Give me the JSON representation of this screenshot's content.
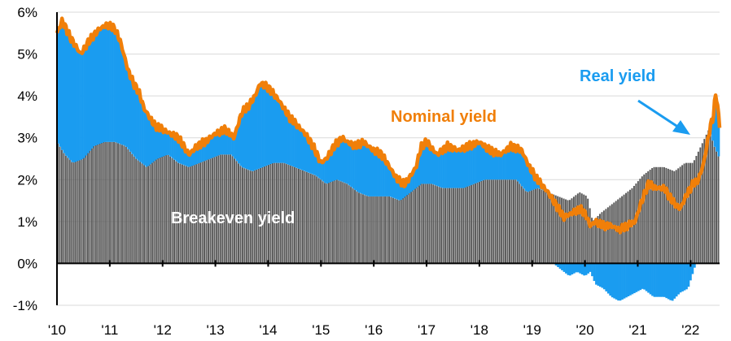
{
  "chart_data": {
    "type": "area",
    "yaxis_ticks": [
      "-1%",
      "0%",
      "1%",
      "2%",
      "3%",
      "4%",
      "5%",
      "6%"
    ],
    "ylim": [
      -1,
      6
    ],
    "xaxis_ticks": [
      "'10",
      "'11",
      "'12",
      "'13",
      "'14",
      "'15",
      "'16",
      "'17",
      "'18",
      "'19",
      "'20",
      "'21",
      "'22"
    ],
    "xlim": [
      2010.0,
      2022.55
    ],
    "grid": "horizontal",
    "annotations": {
      "nominal_label": "Nominal yield",
      "real_label": "Real yield",
      "breakeven_label": "Breakeven yield"
    },
    "colors": {
      "nominal": "#F07F09",
      "real": "#1A9CF0",
      "breakeven": "#595959",
      "grid": "#D9D9D9",
      "axis": "#000000"
    },
    "series": [
      {
        "name": "Nominal yield",
        "x": [
          2010.0,
          2010.1,
          2010.25,
          2010.45,
          2010.6,
          2010.8,
          2010.95,
          2011.1,
          2011.2,
          2011.35,
          2011.45,
          2011.55,
          2011.65,
          2011.75,
          2011.85,
          2012.0,
          2012.15,
          2012.3,
          2012.5,
          2012.65,
          2012.8,
          2013.0,
          2013.2,
          2013.35,
          2013.5,
          2013.65,
          2013.75,
          2013.85,
          2014.0,
          2014.2,
          2014.4,
          2014.55,
          2014.7,
          2014.85,
          2015.0,
          2015.1,
          2015.25,
          2015.4,
          2015.5,
          2015.65,
          2015.8,
          2016.0,
          2016.15,
          2016.3,
          2016.45,
          2016.6,
          2016.8,
          2016.9,
          2017.0,
          2017.2,
          2017.4,
          2017.6,
          2017.8,
          2018.0,
          2018.2,
          2018.4,
          2018.6,
          2018.8,
          2018.95,
          2019.1,
          2019.3,
          2019.45,
          2019.6,
          2019.75,
          2019.9,
          2020.0,
          2020.1,
          2020.2,
          2020.35,
          2020.5,
          2020.65,
          2020.8,
          2020.95,
          2021.05,
          2021.2,
          2021.35,
          2021.5,
          2021.65,
          2021.8,
          2021.95,
          2022.05,
          2022.15,
          2022.25,
          2022.32,
          2022.38,
          2022.43,
          2022.48,
          2022.55
        ],
        "y": [
          5.5,
          5.8,
          5.4,
          5.0,
          5.3,
          5.6,
          5.7,
          5.6,
          5.3,
          4.6,
          4.3,
          4.1,
          3.7,
          3.5,
          3.3,
          3.2,
          3.1,
          3.0,
          2.6,
          2.8,
          2.9,
          3.1,
          3.2,
          3.0,
          3.6,
          3.8,
          4.0,
          4.3,
          4.2,
          3.9,
          3.5,
          3.3,
          3.1,
          2.8,
          2.4,
          2.5,
          2.8,
          3.0,
          2.9,
          2.8,
          2.9,
          2.7,
          2.6,
          2.3,
          2.0,
          1.9,
          2.3,
          2.8,
          2.9,
          2.6,
          2.8,
          2.7,
          2.8,
          2.9,
          2.7,
          2.6,
          2.8,
          2.7,
          2.3,
          2.0,
          1.7,
          1.4,
          1.1,
          1.2,
          1.3,
          1.2,
          0.9,
          1.0,
          0.9,
          0.9,
          0.8,
          0.9,
          1.0,
          1.4,
          1.9,
          1.8,
          1.8,
          1.5,
          1.3,
          1.7,
          1.9,
          2.0,
          2.4,
          2.9,
          3.3,
          3.5,
          4.1,
          3.3
        ]
      },
      {
        "name": "Breakeven yield",
        "x": [
          2010.0,
          2010.15,
          2010.3,
          2010.5,
          2010.7,
          2010.9,
          2011.1,
          2011.3,
          2011.5,
          2011.7,
          2011.9,
          2012.1,
          2012.3,
          2012.5,
          2012.7,
          2012.9,
          2013.1,
          2013.3,
          2013.5,
          2013.7,
          2013.9,
          2014.1,
          2014.3,
          2014.5,
          2014.7,
          2014.9,
          2015.1,
          2015.3,
          2015.5,
          2015.7,
          2015.9,
          2016.1,
          2016.3,
          2016.5,
          2016.7,
          2016.9,
          2017.1,
          2017.3,
          2017.5,
          2017.7,
          2017.9,
          2018.1,
          2018.3,
          2018.5,
          2018.7,
          2018.9,
          2019.1,
          2019.3,
          2019.5,
          2019.7,
          2019.9,
          2020.05,
          2020.15,
          2020.3,
          2020.5,
          2020.7,
          2020.9,
          2021.1,
          2021.3,
          2021.5,
          2021.7,
          2021.9,
          2022.05,
          2022.2,
          2022.35,
          2022.45,
          2022.55
        ],
        "y": [
          2.9,
          2.6,
          2.4,
          2.5,
          2.8,
          2.9,
          2.9,
          2.8,
          2.5,
          2.3,
          2.5,
          2.6,
          2.4,
          2.3,
          2.4,
          2.5,
          2.6,
          2.6,
          2.3,
          2.2,
          2.3,
          2.4,
          2.4,
          2.3,
          2.2,
          2.1,
          1.9,
          2.0,
          1.9,
          1.7,
          1.6,
          1.6,
          1.6,
          1.5,
          1.7,
          1.9,
          1.9,
          1.8,
          1.8,
          1.8,
          1.9,
          2.0,
          2.0,
          2.0,
          2.0,
          1.7,
          1.8,
          1.7,
          1.6,
          1.5,
          1.7,
          1.6,
          1.0,
          1.2,
          1.4,
          1.6,
          1.8,
          2.1,
          2.3,
          2.3,
          2.2,
          2.4,
          2.4,
          2.8,
          3.2,
          2.8,
          2.5
        ]
      },
      {
        "name": "Real yield",
        "x": [
          2010.0,
          2010.5,
          2011.0,
          2011.5,
          2012.0,
          2012.5,
          2013.0,
          2013.5,
          2014.0,
          2014.5,
          2015.0,
          2015.5,
          2016.0,
          2016.5,
          2017.0,
          2017.5,
          2018.0,
          2018.5,
          2019.0,
          2019.3,
          2019.5,
          2019.7,
          2019.85,
          2020.0,
          2020.1,
          2020.2,
          2020.35,
          2020.5,
          2020.65,
          2020.8,
          2020.95,
          2021.1,
          2021.3,
          2021.5,
          2021.65,
          2021.8,
          2021.95,
          2022.05,
          2022.15,
          2022.3,
          2022.45,
          2022.55
        ],
        "y": [
          2.6,
          2.5,
          2.8,
          1.7,
          0.6,
          0.3,
          0.5,
          1.3,
          1.9,
          1.2,
          0.5,
          0.9,
          1.1,
          0.5,
          1.0,
          0.9,
          0.9,
          0.8,
          0.5,
          0.1,
          -0.1,
          -0.3,
          -0.2,
          -0.3,
          -0.2,
          -0.5,
          -0.6,
          -0.8,
          -0.9,
          -0.8,
          -0.7,
          -0.6,
          -0.8,
          -0.8,
          -0.9,
          -0.7,
          -0.6,
          -0.2,
          0.2,
          0.5,
          0.8,
          0.6
        ]
      }
    ]
  }
}
